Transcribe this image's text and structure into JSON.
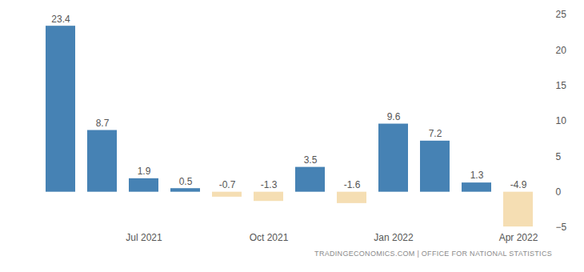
{
  "chart_data": {
    "type": "bar",
    "caption": "TRADINGECONOMICS.COM | OFFICE FOR NATIONAL STATISTICS",
    "categories": [
      null,
      null,
      "Jul 2021",
      null,
      null,
      "Oct 2021",
      null,
      null,
      "Jan 2022",
      null,
      null,
      "Apr 2022"
    ],
    "values": [
      23.4,
      8.7,
      1.9,
      0.5,
      -0.7,
      -1.3,
      3.5,
      -1.6,
      9.6,
      7.2,
      1.3,
      -4.9
    ],
    "colors": [
      "#4682b4",
      "#4682b4",
      "#4682b4",
      "#4682b4",
      "#f5deb3",
      "#f5deb3",
      "#4682b4",
      "#f5deb3",
      "#4682b4",
      "#4682b4",
      "#4682b4",
      "#f5deb3"
    ],
    "ylim": [
      -5,
      25
    ],
    "yticks": [
      -5,
      0,
      5,
      10,
      15,
      20,
      25
    ],
    "grid": false,
    "data_labels": true
  }
}
